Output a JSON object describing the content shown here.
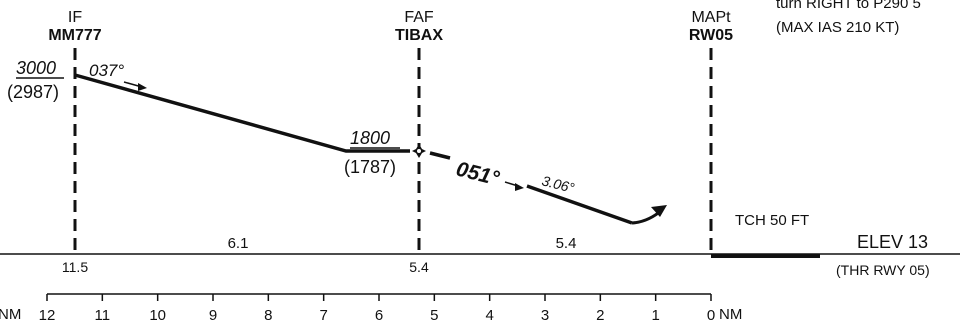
{
  "fixes": {
    "if": {
      "role": "IF",
      "name": "MM777"
    },
    "faf": {
      "role": "FAF",
      "name": "TIBAX"
    },
    "mapt": {
      "role": "MAPt",
      "name": "RW05"
    }
  },
  "missed_approach": {
    "text_line1": "turn RIGHT to P290 5",
    "text_line2": "(MAX IAS 210 KT)"
  },
  "altitudes": {
    "if_alt": "3000",
    "if_agl": "(2987)",
    "faf_alt": "1800",
    "faf_agl": "(1787)"
  },
  "courses": {
    "initial_course": "037°",
    "final_course": "051°",
    "glide_angle": "3.06°"
  },
  "segments": {
    "intermediate": "6.1",
    "final": "5.4"
  },
  "distances": {
    "if_dme": "11.5",
    "faf_dme": "5.4"
  },
  "threshold": {
    "tch": "TCH 50 FT",
    "elev": "ELEV 13",
    "thr_label": "(THR RWY 05)"
  },
  "scale": {
    "unit_left": "NM",
    "unit_right": "NM",
    "ticks": [
      "12",
      "11",
      "10",
      "9",
      "8",
      "7",
      "6",
      "5",
      "4",
      "3",
      "2",
      "1",
      "0"
    ]
  }
}
